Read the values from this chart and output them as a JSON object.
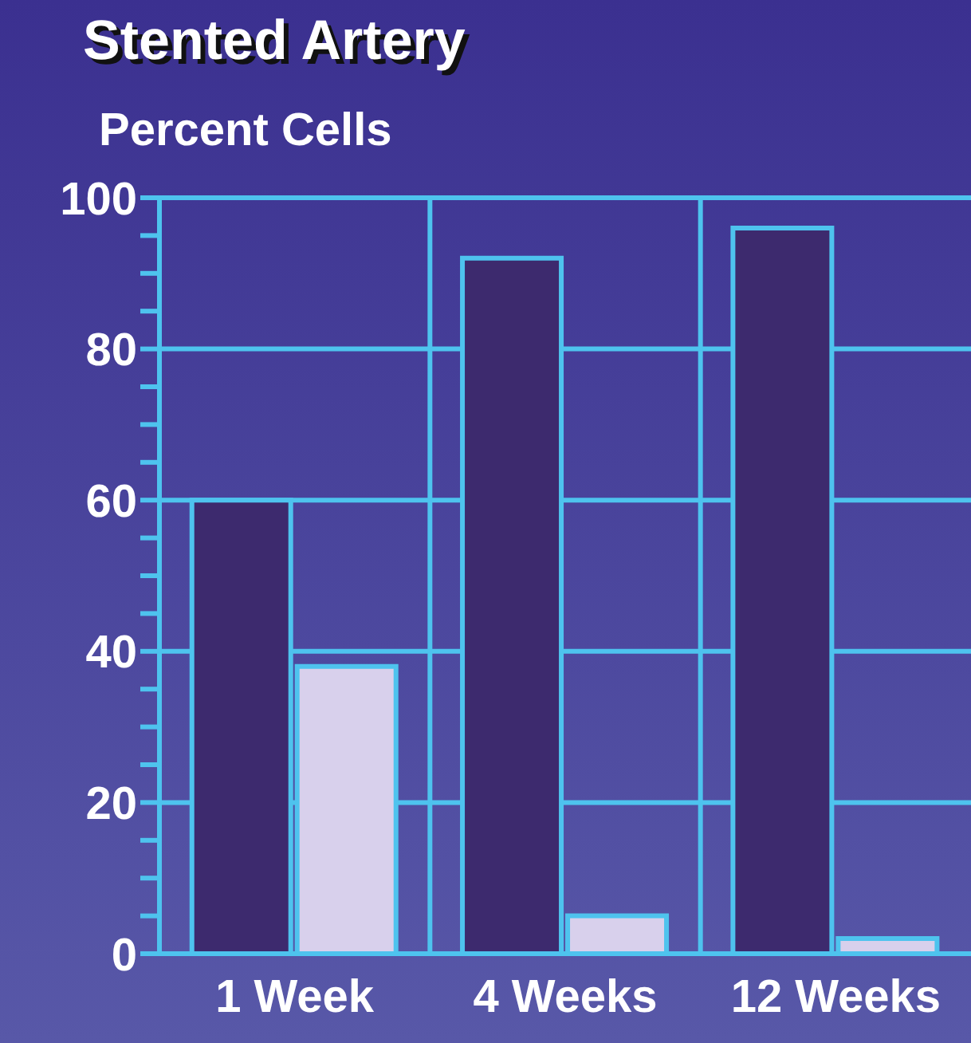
{
  "chart_data": {
    "type": "bar",
    "title": "Stented Artery",
    "ylabel": "Percent Cells",
    "categories": [
      "1 Week",
      "4 Weeks",
      "12 Weeks"
    ],
    "series": [
      {
        "color": "#3d2a6e",
        "values": [
          60,
          92,
          96
        ]
      },
      {
        "color": "#d8d0ec",
        "values": [
          38,
          5,
          2
        ]
      }
    ],
    "ylim": [
      0,
      100
    ],
    "yticks": [
      0,
      {
        "value": 5,
        "label": null
      },
      {
        "value": 10,
        "label": null
      },
      {
        "value": 15,
        "label": null
      },
      20,
      {
        "value": 25,
        "label": null
      },
      {
        "value": 30,
        "label": null
      },
      {
        "value": 35,
        "label": null
      },
      40,
      {
        "value": 45,
        "label": null
      },
      {
        "value": 50,
        "label": null
      },
      {
        "value": 55,
        "label": null
      },
      60,
      {
        "value": 65,
        "label": null
      },
      {
        "value": 70,
        "label": null
      },
      {
        "value": 75,
        "label": null
      },
      80,
      {
        "value": 85,
        "label": null
      },
      {
        "value": 90,
        "label": null
      },
      {
        "value": 95,
        "label": null
      },
      100
    ],
    "grid": true,
    "legend": false
  }
}
